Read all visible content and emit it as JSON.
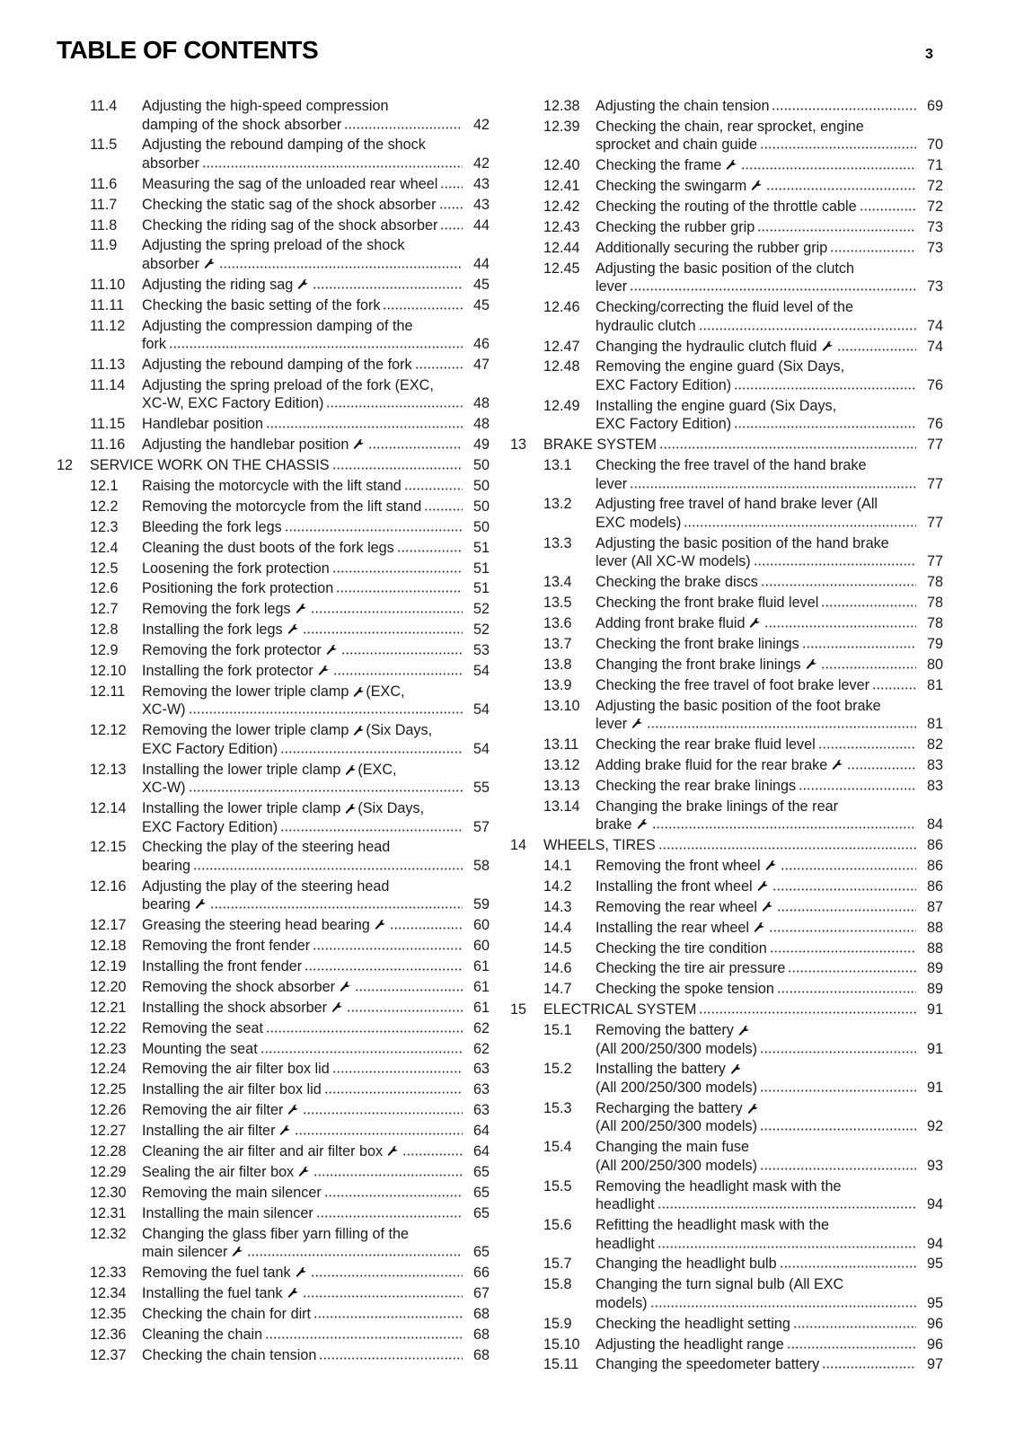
{
  "header": {
    "title": "TABLE OF CONTENTS",
    "page_number": "3"
  },
  "icons": {
    "tool": "wrench-icon"
  },
  "columns": [
    [
      {
        "num": "11.4",
        "lines": [
          {
            "text": "Adjusting the high-speed compression"
          },
          {
            "text": "damping of the shock absorber"
          }
        ],
        "page": "42"
      },
      {
        "num": "11.5",
        "lines": [
          {
            "text": "Adjusting the rebound damping of the shock"
          },
          {
            "text": "absorber"
          }
        ],
        "page": "42"
      },
      {
        "num": "11.6",
        "lines": [
          {
            "text": "Measuring the sag of the unloaded rear wheel"
          }
        ],
        "page": "43"
      },
      {
        "num": "11.7",
        "lines": [
          {
            "text": "Checking the static sag of the shock absorber"
          }
        ],
        "page": "43"
      },
      {
        "num": "11.8",
        "lines": [
          {
            "text": "Checking the riding sag of the shock absorber"
          }
        ],
        "page": "44"
      },
      {
        "num": "11.9",
        "lines": [
          {
            "text": "Adjusting the spring preload of the shock"
          },
          {
            "text": "absorber",
            "wrench": true
          }
        ],
        "page": "44"
      },
      {
        "num": "11.10",
        "lines": [
          {
            "text": "Adjusting the riding sag",
            "wrench": true
          }
        ],
        "page": "45"
      },
      {
        "num": "11.11",
        "lines": [
          {
            "text": "Checking the basic setting of the fork"
          }
        ],
        "page": "45"
      },
      {
        "num": "11.12",
        "lines": [
          {
            "text": "Adjusting the compression damping of the"
          },
          {
            "text": "fork"
          }
        ],
        "page": "46"
      },
      {
        "num": "11.13",
        "lines": [
          {
            "text": "Adjusting the rebound damping of the fork"
          }
        ],
        "page": "47"
      },
      {
        "num": "11.14",
        "lines": [
          {
            "text": "Adjusting the spring preload of the fork (EXC,"
          },
          {
            "text": "XC-W, EXC Factory Edition)"
          }
        ],
        "page": "48"
      },
      {
        "num": "11.15",
        "lines": [
          {
            "text": "Handlebar position"
          }
        ],
        "page": "48"
      },
      {
        "num": "11.16",
        "lines": [
          {
            "text": "Adjusting the handlebar position",
            "wrench": true
          }
        ],
        "page": "49"
      },
      {
        "chapter": "12",
        "lines": [
          {
            "text": "SERVICE WORK ON THE CHASSIS"
          }
        ],
        "page": "50"
      },
      {
        "num": "12.1",
        "lines": [
          {
            "text": "Raising the motorcycle with the lift stand"
          }
        ],
        "page": "50"
      },
      {
        "num": "12.2",
        "lines": [
          {
            "text": "Removing the motorcycle from the lift stand"
          }
        ],
        "page": "50"
      },
      {
        "num": "12.3",
        "lines": [
          {
            "text": "Bleeding the fork legs"
          }
        ],
        "page": "50"
      },
      {
        "num": "12.4",
        "lines": [
          {
            "text": "Cleaning the dust boots of the fork legs"
          }
        ],
        "page": "51"
      },
      {
        "num": "12.5",
        "lines": [
          {
            "text": "Loosening the fork protection"
          }
        ],
        "page": "51"
      },
      {
        "num": "12.6",
        "lines": [
          {
            "text": "Positioning the fork protection"
          }
        ],
        "page": "51"
      },
      {
        "num": "12.7",
        "lines": [
          {
            "text": "Removing the fork legs",
            "wrench": true
          }
        ],
        "page": "52"
      },
      {
        "num": "12.8",
        "lines": [
          {
            "text": "Installing the fork legs",
            "wrench": true
          }
        ],
        "page": "52"
      },
      {
        "num": "12.9",
        "lines": [
          {
            "text": "Removing the fork protector",
            "wrench": true
          }
        ],
        "page": "53"
      },
      {
        "num": "12.10",
        "lines": [
          {
            "text": "Installing the fork protector",
            "wrench": true
          }
        ],
        "page": "54"
      },
      {
        "num": "12.11",
        "lines": [
          {
            "text": "Removing the lower triple clamp",
            "wrench": true,
            "rest": "(EXC,"
          },
          {
            "text": "XC-W)"
          }
        ],
        "page": "54"
      },
      {
        "num": "12.12",
        "lines": [
          {
            "text": "Removing the lower triple clamp",
            "wrench": true,
            "rest": "(Six Days,"
          },
          {
            "text": "EXC Factory Edition)"
          }
        ],
        "page": "54"
      },
      {
        "num": "12.13",
        "lines": [
          {
            "text": "Installing the lower triple clamp",
            "wrench": true,
            "rest": "(EXC,"
          },
          {
            "text": "XC-W)"
          }
        ],
        "page": "55"
      },
      {
        "num": "12.14",
        "lines": [
          {
            "text": "Installing the lower triple clamp",
            "wrench": true,
            "rest": "(Six Days,"
          },
          {
            "text": "EXC Factory Edition)"
          }
        ],
        "page": "57"
      },
      {
        "num": "12.15",
        "lines": [
          {
            "text": "Checking the play of the steering head"
          },
          {
            "text": "bearing"
          }
        ],
        "page": "58"
      },
      {
        "num": "12.16",
        "lines": [
          {
            "text": "Adjusting the play of the steering head"
          },
          {
            "text": "bearing",
            "wrench": true
          }
        ],
        "page": "59"
      },
      {
        "num": "12.17",
        "lines": [
          {
            "text": "Greasing the steering head bearing",
            "wrench": true
          }
        ],
        "page": "60"
      },
      {
        "num": "12.18",
        "lines": [
          {
            "text": "Removing the front fender"
          }
        ],
        "page": "60"
      },
      {
        "num": "12.19",
        "lines": [
          {
            "text": "Installing the front fender"
          }
        ],
        "page": "61"
      },
      {
        "num": "12.20",
        "lines": [
          {
            "text": "Removing the shock absorber",
            "wrench": true
          }
        ],
        "page": "61"
      },
      {
        "num": "12.21",
        "lines": [
          {
            "text": "Installing the shock absorber",
            "wrench": true
          }
        ],
        "page": "61"
      },
      {
        "num": "12.22",
        "lines": [
          {
            "text": "Removing the seat"
          }
        ],
        "page": "62"
      },
      {
        "num": "12.23",
        "lines": [
          {
            "text": "Mounting the seat"
          }
        ],
        "page": "62"
      },
      {
        "num": "12.24",
        "lines": [
          {
            "text": "Removing the air filter box lid"
          }
        ],
        "page": "63"
      },
      {
        "num": "12.25",
        "lines": [
          {
            "text": "Installing the air filter box lid"
          }
        ],
        "page": "63"
      },
      {
        "num": "12.26",
        "lines": [
          {
            "text": "Removing the air filter",
            "wrench": true
          }
        ],
        "page": "63"
      },
      {
        "num": "12.27",
        "lines": [
          {
            "text": "Installing the air filter",
            "wrench": true
          }
        ],
        "page": "64"
      },
      {
        "num": "12.28",
        "lines": [
          {
            "text": "Cleaning the air filter and air filter box",
            "wrench": true
          }
        ],
        "page": "64"
      },
      {
        "num": "12.29",
        "lines": [
          {
            "text": "Sealing the air filter box",
            "wrench": true
          }
        ],
        "page": "65"
      },
      {
        "num": "12.30",
        "lines": [
          {
            "text": "Removing the main silencer"
          }
        ],
        "page": "65"
      },
      {
        "num": "12.31",
        "lines": [
          {
            "text": "Installing the main silencer"
          }
        ],
        "page": "65"
      },
      {
        "num": "12.32",
        "lines": [
          {
            "text": "Changing the glass fiber yarn filling of the"
          },
          {
            "text": "main silencer",
            "wrench": true
          }
        ],
        "page": "65"
      },
      {
        "num": "12.33",
        "lines": [
          {
            "text": "Removing the fuel tank",
            "wrench": true
          }
        ],
        "page": "66"
      },
      {
        "num": "12.34",
        "lines": [
          {
            "text": "Installing the fuel tank",
            "wrench": true
          }
        ],
        "page": "67"
      },
      {
        "num": "12.35",
        "lines": [
          {
            "text": "Checking the chain for dirt"
          }
        ],
        "page": "68"
      },
      {
        "num": "12.36",
        "lines": [
          {
            "text": "Cleaning the chain"
          }
        ],
        "page": "68"
      },
      {
        "num": "12.37",
        "lines": [
          {
            "text": "Checking the chain tension"
          }
        ],
        "page": "68"
      }
    ],
    [
      {
        "num": "12.38",
        "lines": [
          {
            "text": "Adjusting the chain tension"
          }
        ],
        "page": "69"
      },
      {
        "num": "12.39",
        "lines": [
          {
            "text": "Checking the chain, rear sprocket, engine"
          },
          {
            "text": "sprocket and chain guide"
          }
        ],
        "page": "70"
      },
      {
        "num": "12.40",
        "lines": [
          {
            "text": "Checking the frame",
            "wrench": true
          }
        ],
        "page": "71"
      },
      {
        "num": "12.41",
        "lines": [
          {
            "text": "Checking the swingarm",
            "wrench": true
          }
        ],
        "page": "72"
      },
      {
        "num": "12.42",
        "lines": [
          {
            "text": "Checking the routing of the throttle cable"
          }
        ],
        "page": "72"
      },
      {
        "num": "12.43",
        "lines": [
          {
            "text": "Checking the rubber grip"
          }
        ],
        "page": "73"
      },
      {
        "num": "12.44",
        "lines": [
          {
            "text": "Additionally securing the rubber grip"
          }
        ],
        "page": "73"
      },
      {
        "num": "12.45",
        "lines": [
          {
            "text": "Adjusting the basic position of the clutch"
          },
          {
            "text": "lever"
          }
        ],
        "page": "73"
      },
      {
        "num": "12.46",
        "lines": [
          {
            "text": "Checking/correcting the fluid level of the"
          },
          {
            "text": "hydraulic clutch"
          }
        ],
        "page": "74"
      },
      {
        "num": "12.47",
        "lines": [
          {
            "text": "Changing the hydraulic clutch fluid",
            "wrench": true
          }
        ],
        "page": "74"
      },
      {
        "num": "12.48",
        "lines": [
          {
            "text": "Removing the engine guard (Six Days,"
          },
          {
            "text": "EXC Factory Edition)"
          }
        ],
        "page": "76"
      },
      {
        "num": "12.49",
        "lines": [
          {
            "text": "Installing the engine guard (Six Days,"
          },
          {
            "text": "EXC Factory Edition)"
          }
        ],
        "page": "76"
      },
      {
        "chapter": "13",
        "lines": [
          {
            "text": "BRAKE SYSTEM"
          }
        ],
        "page": "77"
      },
      {
        "num": "13.1",
        "lines": [
          {
            "text": "Checking the free travel of the hand brake"
          },
          {
            "text": "lever"
          }
        ],
        "page": "77"
      },
      {
        "num": "13.2",
        "lines": [
          {
            "text": "Adjusting free travel of hand brake lever (All"
          },
          {
            "text": "EXC models)"
          }
        ],
        "page": "77"
      },
      {
        "num": "13.3",
        "lines": [
          {
            "text": "Adjusting the basic position of the hand brake"
          },
          {
            "text": "lever (All XC-W models)"
          }
        ],
        "page": "77"
      },
      {
        "num": "13.4",
        "lines": [
          {
            "text": "Checking the brake discs"
          }
        ],
        "page": "78"
      },
      {
        "num": "13.5",
        "lines": [
          {
            "text": "Checking the front brake fluid level"
          }
        ],
        "page": "78"
      },
      {
        "num": "13.6",
        "lines": [
          {
            "text": "Adding front brake fluid",
            "wrench": true
          }
        ],
        "page": "78"
      },
      {
        "num": "13.7",
        "lines": [
          {
            "text": "Checking the front brake linings"
          }
        ],
        "page": "79"
      },
      {
        "num": "13.8",
        "lines": [
          {
            "text": "Changing the front brake linings",
            "wrench": true
          }
        ],
        "page": "80"
      },
      {
        "num": "13.9",
        "lines": [
          {
            "text": "Checking the free travel of foot brake lever"
          }
        ],
        "page": "81"
      },
      {
        "num": "13.10",
        "lines": [
          {
            "text": "Adjusting the basic position of the foot brake"
          },
          {
            "text": "lever",
            "wrench": true
          }
        ],
        "page": "81"
      },
      {
        "num": "13.11",
        "lines": [
          {
            "text": "Checking the rear brake fluid level"
          }
        ],
        "page": "82"
      },
      {
        "num": "13.12",
        "lines": [
          {
            "text": "Adding brake fluid for the rear brake",
            "wrench": true
          }
        ],
        "page": "83"
      },
      {
        "num": "13.13",
        "lines": [
          {
            "text": "Checking the rear brake linings"
          }
        ],
        "page": "83"
      },
      {
        "num": "13.14",
        "lines": [
          {
            "text": "Changing the brake linings of the rear"
          },
          {
            "text": "brake",
            "wrench": true
          }
        ],
        "page": "84"
      },
      {
        "chapter": "14",
        "lines": [
          {
            "text": "WHEELS, TIRES"
          }
        ],
        "page": "86"
      },
      {
        "num": "14.1",
        "lines": [
          {
            "text": "Removing the front wheel",
            "wrench": true
          }
        ],
        "page": "86"
      },
      {
        "num": "14.2",
        "lines": [
          {
            "text": "Installing the front wheel",
            "wrench": true
          }
        ],
        "page": "86"
      },
      {
        "num": "14.3",
        "lines": [
          {
            "text": "Removing the rear wheel",
            "wrench": true
          }
        ],
        "page": "87"
      },
      {
        "num": "14.4",
        "lines": [
          {
            "text": "Installing the rear wheel",
            "wrench": true
          }
        ],
        "page": "88"
      },
      {
        "num": "14.5",
        "lines": [
          {
            "text": "Checking the tire condition"
          }
        ],
        "page": "88"
      },
      {
        "num": "14.6",
        "lines": [
          {
            "text": "Checking the tire air pressure"
          }
        ],
        "page": "89"
      },
      {
        "num": "14.7",
        "lines": [
          {
            "text": "Checking the spoke tension"
          }
        ],
        "page": "89"
      },
      {
        "chapter": "15",
        "lines": [
          {
            "text": "ELECTRICAL SYSTEM"
          }
        ],
        "page": "91"
      },
      {
        "num": "15.1",
        "lines": [
          {
            "text": "Removing the battery",
            "wrench": true
          },
          {
            "text": "(All 200/250/300 models)"
          }
        ],
        "page": "91"
      },
      {
        "num": "15.2",
        "lines": [
          {
            "text": "Installing the battery",
            "wrench": true
          },
          {
            "text": "(All 200/250/300 models)"
          }
        ],
        "page": "91"
      },
      {
        "num": "15.3",
        "lines": [
          {
            "text": "Recharging the battery",
            "wrench": true
          },
          {
            "text": "(All 200/250/300 models)"
          }
        ],
        "page": "92"
      },
      {
        "num": "15.4",
        "lines": [
          {
            "text": "Changing the main fuse"
          },
          {
            "text": "(All 200/250/300 models)"
          }
        ],
        "page": "93"
      },
      {
        "num": "15.5",
        "lines": [
          {
            "text": "Removing the headlight mask with the"
          },
          {
            "text": "headlight"
          }
        ],
        "page": "94"
      },
      {
        "num": "15.6",
        "lines": [
          {
            "text": "Refitting the headlight mask with the"
          },
          {
            "text": "headlight"
          }
        ],
        "page": "94"
      },
      {
        "num": "15.7",
        "lines": [
          {
            "text": "Changing the headlight bulb"
          }
        ],
        "page": "95"
      },
      {
        "num": "15.8",
        "lines": [
          {
            "text": "Changing the turn signal bulb (All EXC"
          },
          {
            "text": "models)"
          }
        ],
        "page": "95"
      },
      {
        "num": "15.9",
        "lines": [
          {
            "text": "Checking the headlight setting"
          }
        ],
        "page": "96"
      },
      {
        "num": "15.10",
        "lines": [
          {
            "text": "Adjusting the headlight range"
          }
        ],
        "page": "96"
      },
      {
        "num": "15.11",
        "lines": [
          {
            "text": "Changing the speedometer battery"
          }
        ],
        "page": "97"
      }
    ]
  ]
}
